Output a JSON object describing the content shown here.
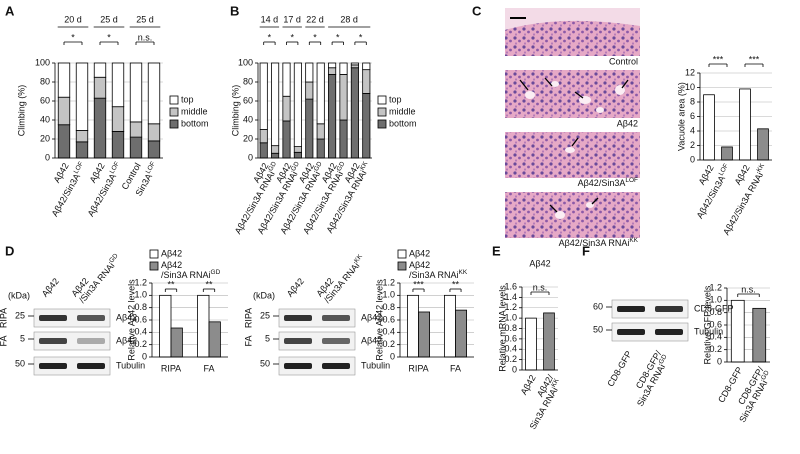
{
  "panel_labels": [
    "A",
    "B",
    "C",
    "D",
    "E",
    "F"
  ],
  "chart_data": [
    {
      "type": "bar",
      "stacked": true,
      "y_label": "Climbing (%)",
      "categories": [
        "Aβ42",
        {
          "text": "Aβ42/Sin3A",
          "sup": "LOF"
        },
        "Aβ42",
        {
          "text": "Aβ42/Sin3A",
          "sup": "LOF"
        },
        "Control",
        {
          "text": "Sin3A",
          "sup": "LOF"
        }
      ],
      "series": [
        {
          "name": "top",
          "color": "#ffffff",
          "values": [
            36,
            71,
            15,
            46,
            62,
            64
          ]
        },
        {
          "name": "middle",
          "color": "#c4c4c4",
          "values": [
            29,
            12,
            22,
            26,
            16,
            18
          ]
        },
        {
          "name": "bottom",
          "color": "#6e6e6e",
          "values": [
            35,
            17,
            63,
            28,
            22,
            18
          ]
        }
      ],
      "ylim": [
        0,
        100
      ],
      "yticks": [
        0,
        20,
        40,
        60,
        80,
        100
      ],
      "grid": true,
      "group_labels": [
        "20 d",
        "25 d",
        "25 d"
      ],
      "significance": [
        "*",
        "*",
        "n.s."
      ]
    },
    {
      "type": "bar",
      "stacked": true,
      "y_label": "Climbing (%)",
      "categories": [
        "Aβ42",
        {
          "text": "Aβ42/Sin3A RNAi",
          "sup": "GD"
        },
        "Aβ42",
        {
          "text": "Aβ42/Sin3A RNAi",
          "sup": "GD"
        },
        "Aβ42",
        {
          "text": "Aβ42/Sin3A RNAi",
          "sup": "GD"
        },
        "Aβ42",
        {
          "text": "Aβ42/Sin3A RNAi",
          "sup": "GD"
        },
        "Aβ42",
        {
          "text": "Aβ42/Sin3A RNAi",
          "sup": "KK"
        }
      ],
      "series": [
        {
          "name": "top",
          "color": "#ffffff",
          "values": [
            70,
            87,
            35,
            88,
            20,
            64,
            5,
            12,
            2,
            7
          ]
        },
        {
          "name": "middle",
          "color": "#c4c4c4",
          "values": [
            14,
            8,
            26,
            6,
            18,
            16,
            7,
            48,
            3,
            25
          ]
        },
        {
          "name": "bottom",
          "color": "#6e6e6e",
          "values": [
            16,
            5,
            39,
            6,
            62,
            20,
            88,
            40,
            95,
            68
          ]
        }
      ],
      "ylim": [
        0,
        100
      ],
      "yticks": [
        0,
        20,
        40,
        60,
        80,
        100
      ],
      "grid": true,
      "group_labels": [
        "14 d",
        "17 d",
        "22 d",
        "28 d"
      ],
      "significance": [
        "*",
        "*",
        "*",
        "*",
        "*"
      ]
    },
    {
      "type": "bar",
      "y_label": "Vacuole area (%)",
      "categories": [
        "Aβ42",
        {
          "text": "Aβ42/Sin3A",
          "sup": "LOF"
        },
        "Aβ42",
        {
          "text": "Aβ42/Sin3A RNAi",
          "sup": "KK"
        }
      ],
      "values": [
        9,
        1.8,
        9.8,
        4.3
      ],
      "colors": [
        "#ffffff",
        "#8c8c8c",
        "#ffffff",
        "#8c8c8c"
      ],
      "ylim": [
        0,
        12
      ],
      "yticks": [
        0,
        2,
        4,
        6,
        8,
        10,
        12
      ],
      "grid": true,
      "significance": [
        "***",
        "***"
      ]
    },
    {
      "type": "bar",
      "y_label": "Relative Aβ42 levels",
      "categories": [
        "RIPA",
        "FA"
      ],
      "series": [
        {
          "name": "Aβ42",
          "color": "#ffffff",
          "values": [
            1.0,
            1.0
          ]
        },
        {
          "name": {
            "text": "Aβ42",
            "line2": "/Sin3A RNAi",
            "sup": "GD"
          },
          "color": "#8c8c8c",
          "values": [
            0.47,
            0.57
          ]
        }
      ],
      "ylim": [
        0,
        1.2
      ],
      "yticks": [
        0,
        0.2,
        0.4,
        0.6,
        0.8,
        {
          "value": 1.0,
          "label": "1.0"
        },
        1.2
      ],
      "grid": true,
      "significance": [
        "**",
        "**"
      ]
    },
    {
      "type": "bar",
      "y_label": "Relative Aβ42 levels",
      "categories": [
        "RIPA",
        "FA"
      ],
      "series": [
        {
          "name": "Aβ42",
          "color": "#ffffff",
          "values": [
            1.0,
            1.0
          ]
        },
        {
          "name": {
            "text": "Aβ42",
            "line2": "/Sin3A RNAi",
            "sup": "KK"
          },
          "color": "#8c8c8c",
          "values": [
            0.73,
            0.76
          ]
        }
      ],
      "ylim": [
        0,
        1.2
      ],
      "yticks": [
        0,
        0.2,
        0.4,
        0.6,
        0.8,
        {
          "value": 1.0,
          "label": "1.0"
        },
        1.2
      ],
      "grid": true,
      "significance": [
        "***",
        "**"
      ]
    },
    {
      "type": "bar",
      "title": "Aβ42",
      "y_label": "Relative mRNA levels",
      "categories": [
        "Aβ42",
        {
          "text": "Aβ42/",
          "line2": "Sin3A RNAi",
          "sup": "KK"
        }
      ],
      "values": [
        1.0,
        1.1
      ],
      "colors": [
        "#ffffff",
        "#8c8c8c"
      ],
      "ylim": [
        0,
        1.6
      ],
      "yticks": [
        0,
        0.2,
        0.4,
        0.6,
        0.8,
        {
          "value": 1.0,
          "label": "1.0"
        },
        1.2,
        1.4,
        1.6
      ],
      "grid": true,
      "significance": [
        "n.s."
      ]
    },
    {
      "type": "bar",
      "y_label": "Relative GFP levels",
      "categories": [
        "CD8-GFP",
        {
          "text": "CD8-GFP/",
          "line2": "Sin3A RNAi",
          "sup": "GD"
        }
      ],
      "values": [
        1.0,
        0.87
      ],
      "colors": [
        "#ffffff",
        "#8c8c8c"
      ],
      "ylim": [
        0,
        1.2
      ],
      "yticks": [
        0,
        0.2,
        0.4,
        0.6,
        0.8,
        {
          "value": 1.0,
          "label": "1.0"
        },
        1.2
      ],
      "grid": true,
      "significance": [
        "n.s."
      ]
    }
  ],
  "micrographs": {
    "captions": [
      "Control",
      "Aβ42",
      {
        "text": "Aβ42/Sin3A",
        "sup": "LOF"
      },
      {
        "text": "Aβ42/Sin3A RNAi",
        "sup": "KK"
      }
    ]
  },
  "blots": [
    {
      "kda_label": "(kDa)",
      "lanes": [
        "Aβ42",
        {
          "text": "Aβ42",
          "line2": "/Sin3A RNAi",
          "sup": "GD"
        }
      ],
      "fractions": [
        "RIPA",
        "FA"
      ],
      "markers": [
        "25",
        "5",
        "50"
      ],
      "bands": [
        "Aβ42",
        "Aβ42",
        "Tubulin"
      ]
    },
    {
      "kda_label": "(kDa)",
      "lanes": [
        "Aβ42",
        {
          "text": "Aβ42",
          "line2": "/Sin3A RNAi",
          "sup": "KK"
        }
      ],
      "fractions": [
        "RIPA",
        "FA"
      ],
      "markers": [
        "25",
        "5",
        "50"
      ],
      "bands": [
        "Aβ42",
        "Aβ42",
        "Tubulin"
      ]
    },
    {
      "lanes": [
        "CD8-GFP",
        {
          "text": "CD8-GFP/",
          "line2": "Sin3A RNAi",
          "sup": "GD"
        }
      ],
      "markers": [
        "60",
        "50"
      ],
      "bands": [
        "CD8-GFP",
        "Tubulin"
      ]
    }
  ]
}
